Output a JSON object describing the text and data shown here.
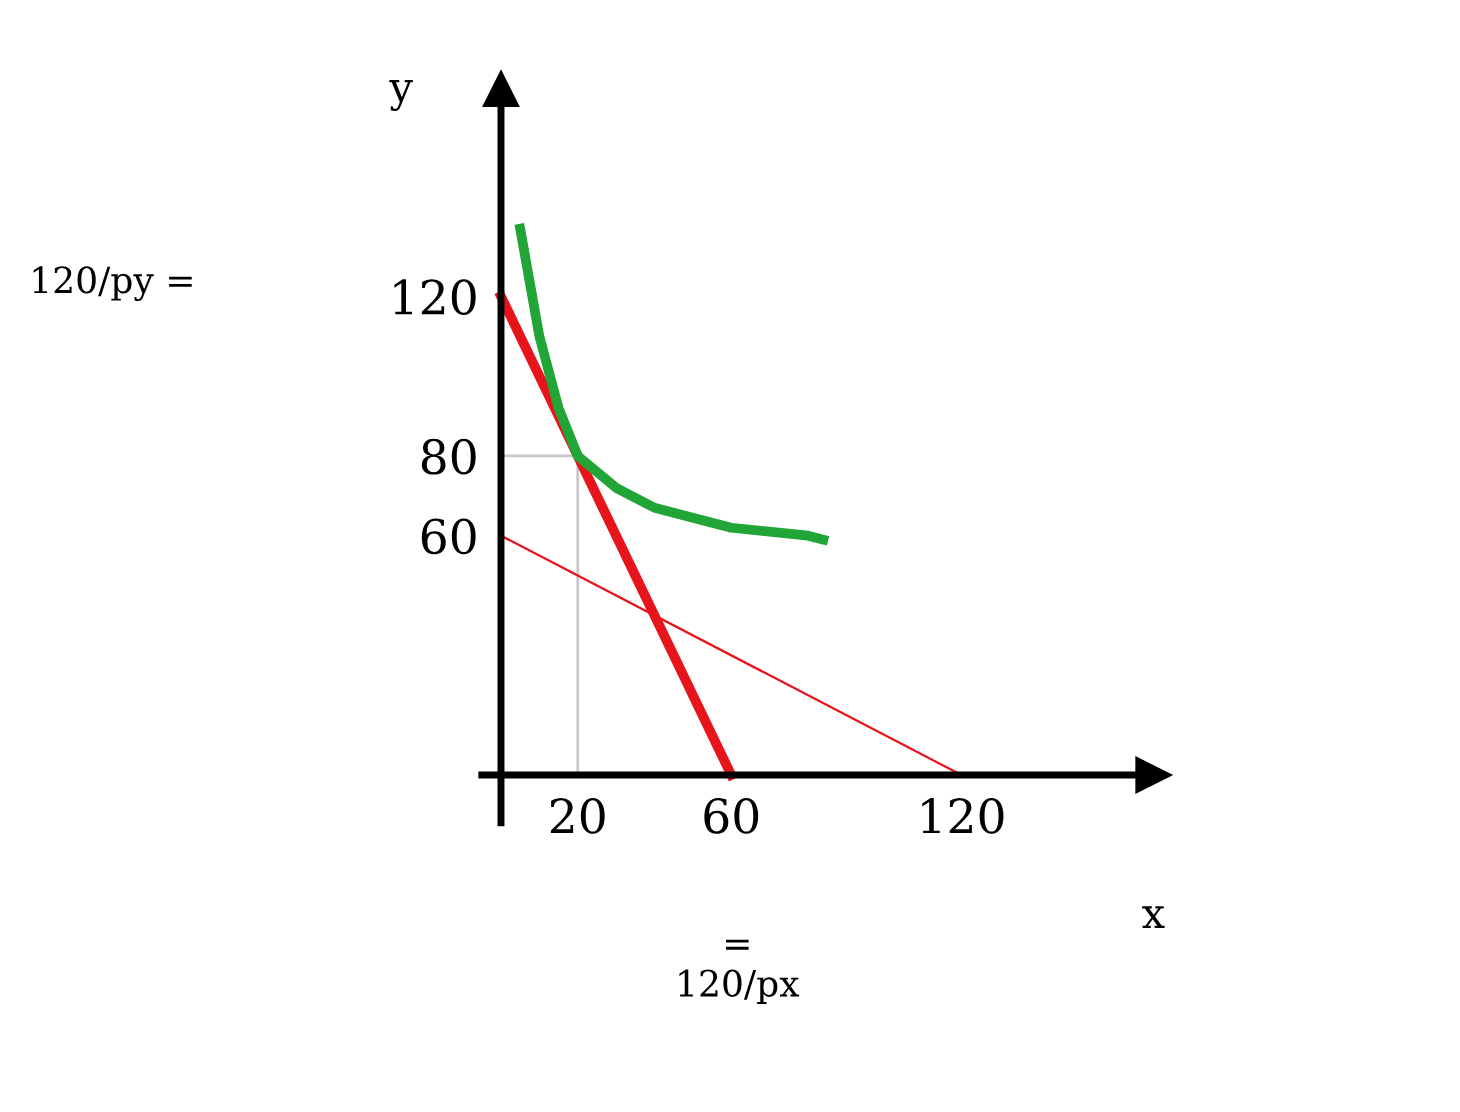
{
  "chart_data": {
    "type": "line",
    "xlabel": "x",
    "ylabel": "y",
    "xlim": [
      -5,
      170
    ],
    "ylim": [
      -12,
      172
    ],
    "xticks": [
      20,
      60,
      120
    ],
    "yticks": [
      60,
      80,
      120
    ],
    "grid": false,
    "legend": false,
    "marker": "none",
    "series": [
      {
        "color": "#c8c8c8",
        "x": [
          0,
          20,
          20
        ],
        "values": [
          80,
          80,
          0
        ]
      },
      {
        "color": "#e8141c",
        "x": [
          0,
          120
        ],
        "values": [
          60,
          0
        ]
      },
      {
        "color": "#e8141c",
        "x": [
          0,
          60
        ],
        "values": [
          120,
          0
        ]
      },
      {
        "color": "#22a537",
        "x": [
          5,
          10,
          15,
          20,
          30,
          40,
          60,
          80,
          84
        ],
        "values": [
          137,
          110,
          92,
          80,
          72,
          67,
          62,
          60,
          59
        ]
      }
    ],
    "annotations": [
      "120/py =",
      "=\n120/px"
    ]
  }
}
